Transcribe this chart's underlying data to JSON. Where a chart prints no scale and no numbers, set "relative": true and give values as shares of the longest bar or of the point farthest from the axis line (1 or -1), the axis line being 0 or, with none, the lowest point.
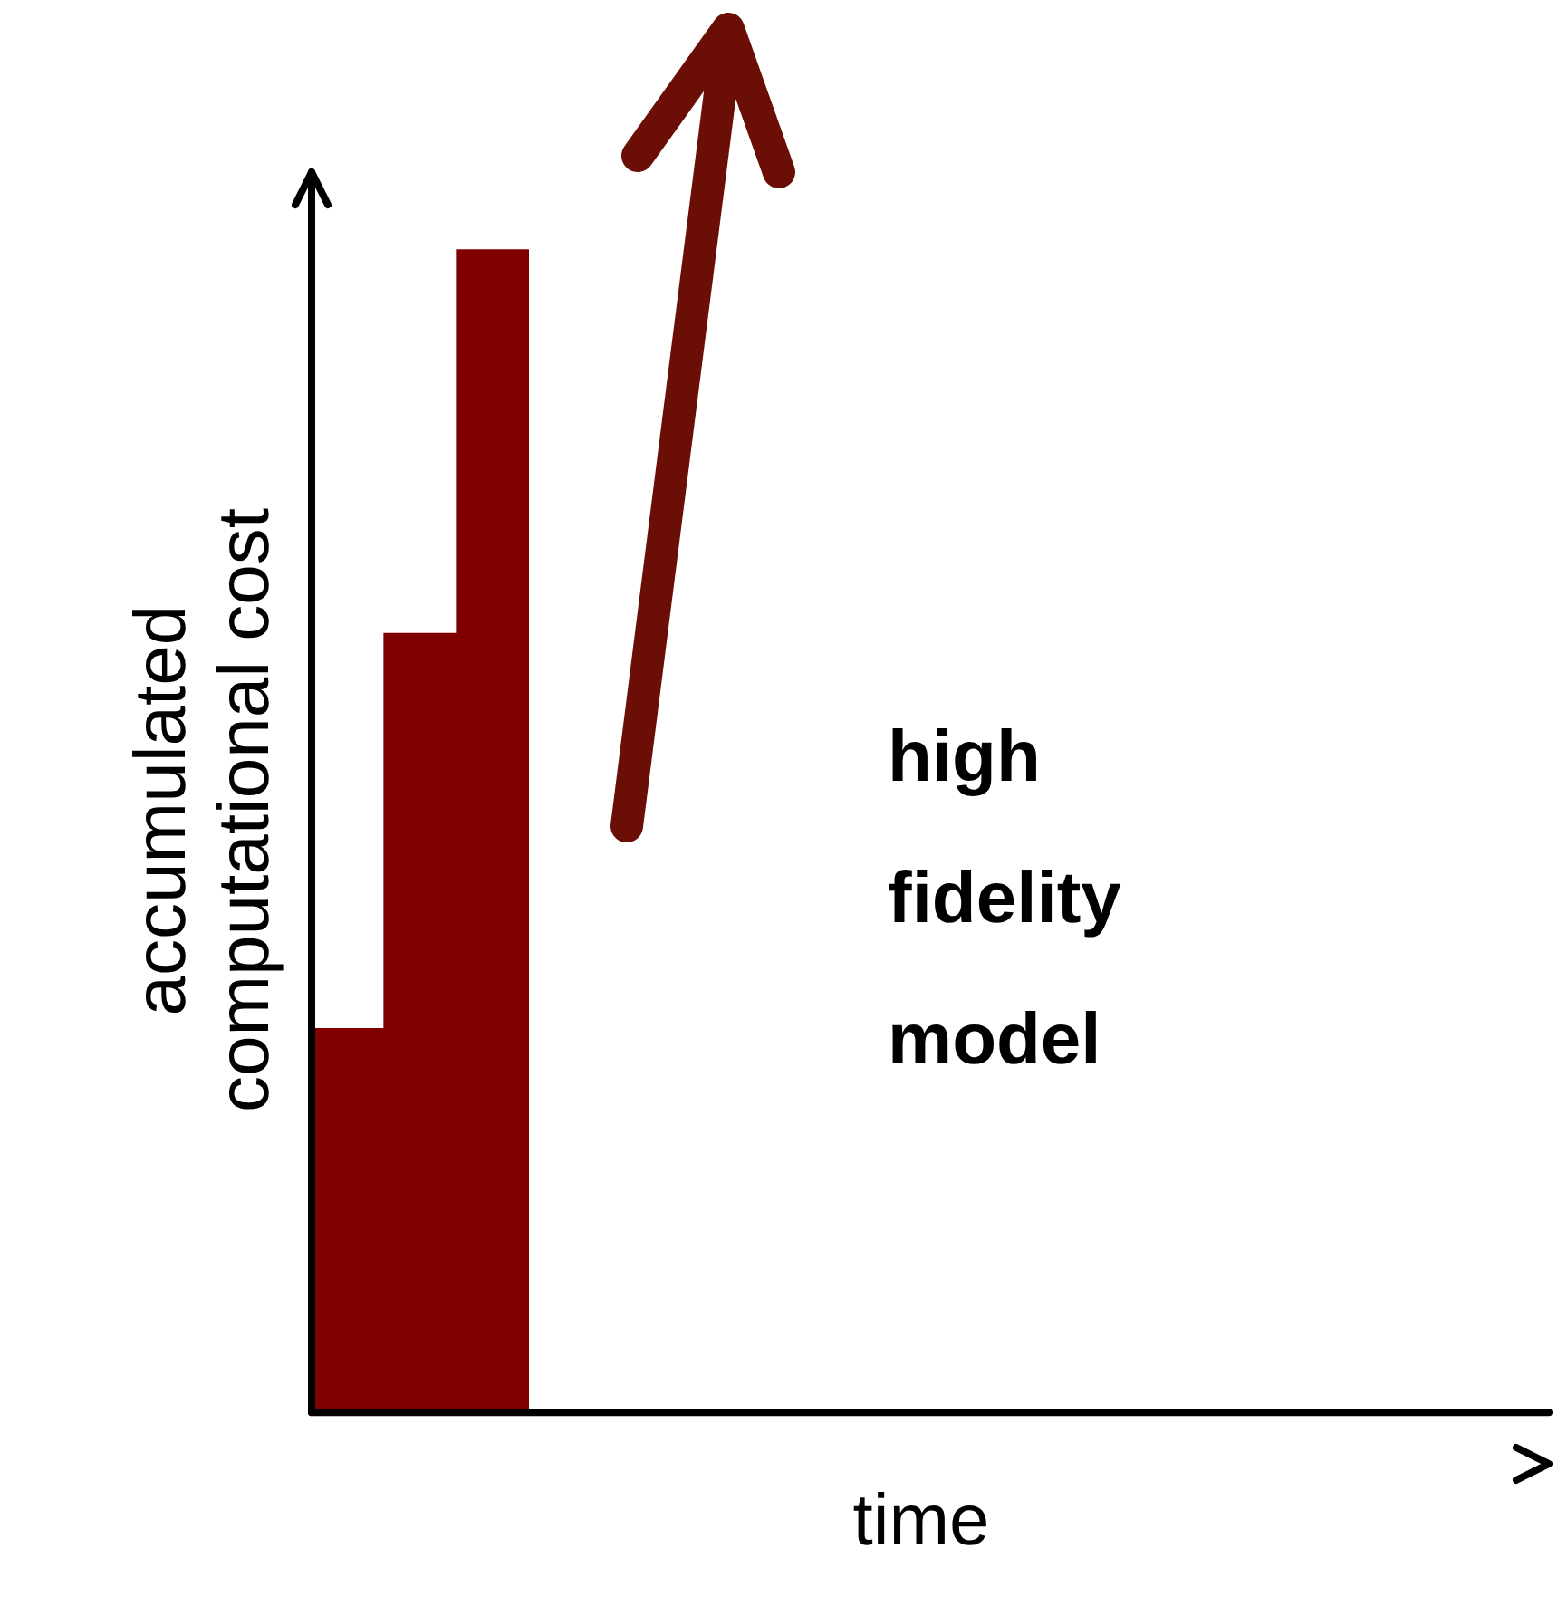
{
  "chart_data": {
    "type": "bar",
    "relative": true,
    "xlabel": "time",
    "ylabel": "accumulated\ncomputational cost",
    "annotations": [
      "high\nfidelity\nmodel"
    ],
    "categories": [
      null,
      null,
      null
    ],
    "values": [
      0.33,
      0.67,
      1
    ],
    "color": "#800000",
    "legend": false
  }
}
